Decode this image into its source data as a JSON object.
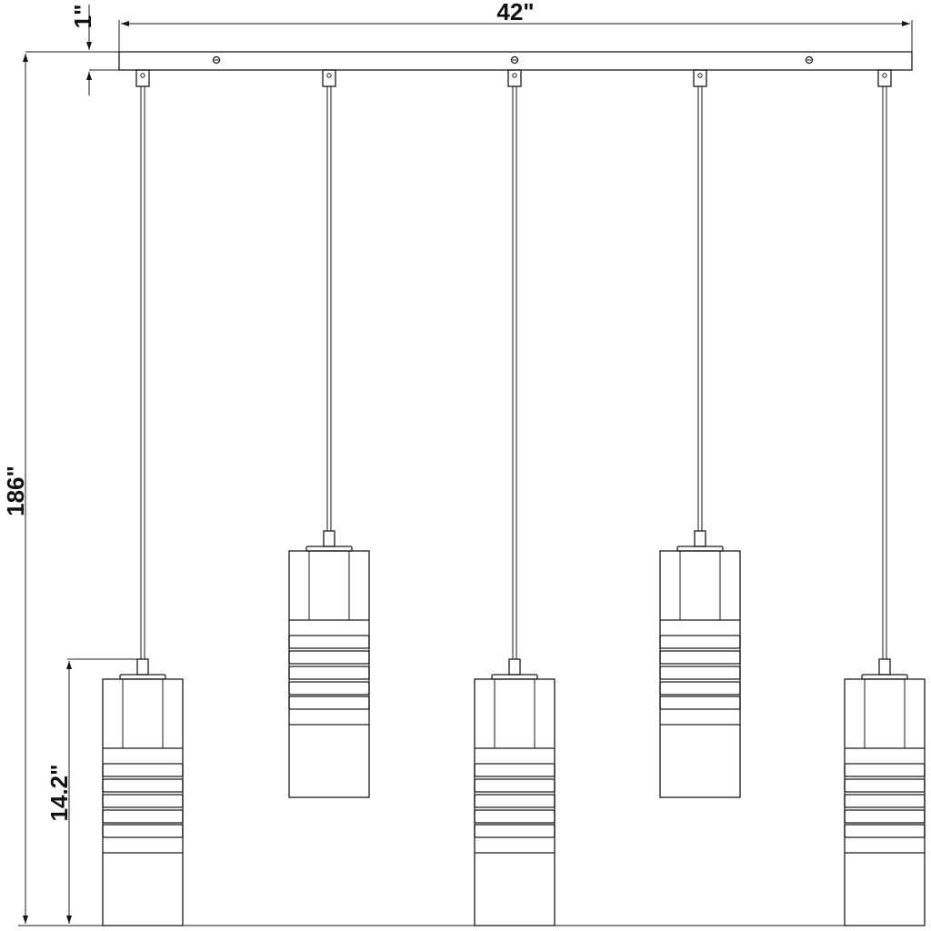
{
  "dimensions": {
    "width": "42\"",
    "canopy_height": "1\"",
    "overall_height": "186\"",
    "pendant_height": "14.2\""
  },
  "colors": {
    "line": "#1a1a1a",
    "background": "#ffffff"
  }
}
